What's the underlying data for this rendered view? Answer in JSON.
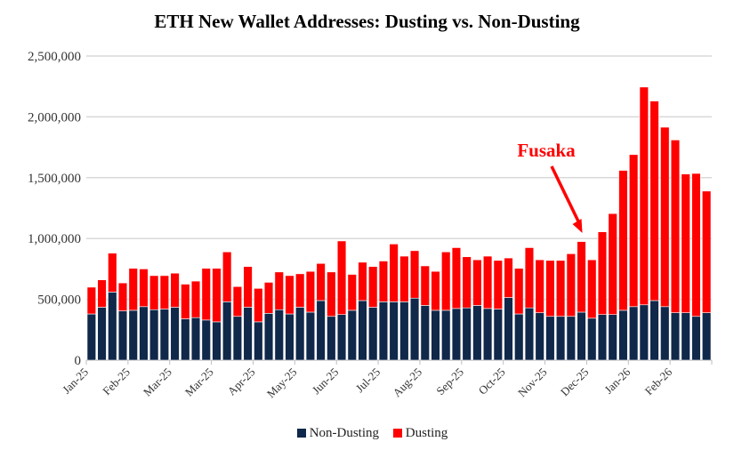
{
  "chart_data": {
    "type": "bar",
    "stacked": true,
    "title": "ETH New Wallet Addresses: Dusting vs. Non-Dusting",
    "xlabel": "",
    "ylabel": "",
    "ylim": [
      0,
      2500000
    ],
    "yticks": [
      0,
      500000,
      1000000,
      1500000,
      2000000,
      2500000
    ],
    "ytick_labels": [
      "0",
      "500,000",
      "1,000,000",
      "1,500,000",
      "2,000,000",
      "2,500,000"
    ],
    "grid": true,
    "legend": "bottom",
    "xtick_labels": [
      "Jan-25",
      "Feb-25",
      "Mar-25",
      "Mar-25",
      "Apr-25",
      "May-25",
      "Jun-25",
      "Jul-25",
      "Aug-25",
      "Sep-25",
      "Oct-25",
      "Nov-25",
      "Dec-25",
      "Jan-26",
      "Feb-26"
    ],
    "xtick_every": 4,
    "annotation": {
      "text": "Fusaka",
      "bar_index": 47,
      "color": "#ff0000"
    },
    "series": [
      {
        "name": "Non-Dusting",
        "color": "#10284a",
        "values": [
          380000,
          435000,
          560000,
          405000,
          410000,
          440000,
          415000,
          420000,
          435000,
          340000,
          350000,
          330000,
          315000,
          480000,
          360000,
          435000,
          315000,
          385000,
          415000,
          380000,
          435000,
          395000,
          490000,
          360000,
          375000,
          410000,
          490000,
          435000,
          480000,
          480000,
          480000,
          510000,
          450000,
          410000,
          410000,
          425000,
          430000,
          450000,
          425000,
          420000,
          515000,
          380000,
          430000,
          390000,
          360000,
          360000,
          360000,
          395000,
          345000,
          375000,
          375000,
          410000,
          440000,
          455000,
          490000,
          440000,
          390000,
          390000,
          360000,
          390000
        ]
      },
      {
        "name": "Dusting",
        "color": "#ff0000",
        "values": [
          220000,
          225000,
          320000,
          230000,
          345000,
          310000,
          280000,
          275000,
          280000,
          285000,
          300000,
          425000,
          440000,
          410000,
          245000,
          335000,
          275000,
          255000,
          310000,
          315000,
          275000,
          335000,
          305000,
          365000,
          605000,
          295000,
          315000,
          335000,
          335000,
          475000,
          375000,
          390000,
          325000,
          320000,
          480000,
          500000,
          420000,
          375000,
          430000,
          400000,
          325000,
          375000,
          495000,
          435000,
          460000,
          460000,
          515000,
          580000,
          480000,
          680000,
          830000,
          1150000,
          1250000,
          1790000,
          1640000,
          1475000,
          1420000,
          1140000,
          1175000,
          1000000
        ]
      }
    ]
  }
}
